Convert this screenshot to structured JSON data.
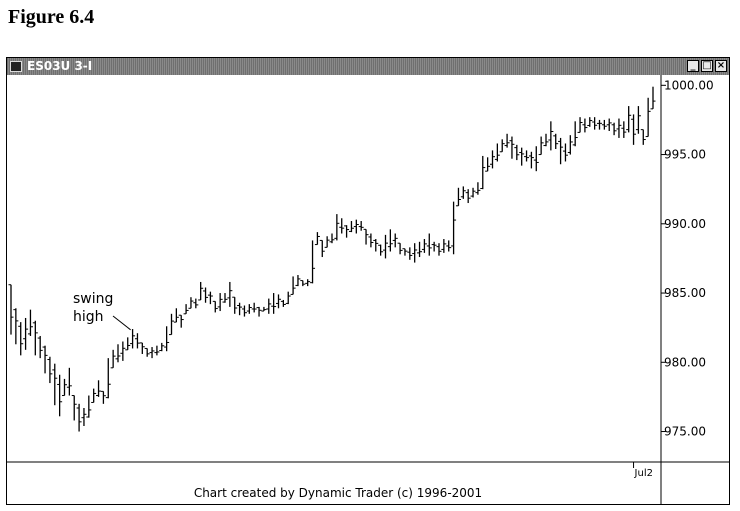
{
  "figure_title": "Figure 6.4",
  "window": {
    "title": "ES03U 3-I",
    "min_symbol": "_",
    "max_symbol": "□",
    "close_symbol": "×"
  },
  "footer": "Chart created by Dynamic Trader (c) 1996-2001",
  "chart_data": {
    "type": "bar",
    "subtype": "ohlc",
    "ylim": [
      972.8,
      1000.6
    ],
    "yticks": [
      975,
      980,
      985,
      990,
      995,
      1000
    ],
    "ytick_labels": [
      "975.00",
      "980.00",
      "985.00",
      "990.00",
      "995.00",
      "1000.00"
    ],
    "xtick_labels": [
      "Jul2"
    ],
    "annotation": {
      "lines": [
        "swing",
        "high"
      ]
    },
    "bars": [
      [
        985.6,
        982.0
      ],
      [
        983.9,
        981.3
      ],
      [
        982.9,
        980.5
      ],
      [
        983.2,
        980.9
      ],
      [
        983.8,
        981.9
      ],
      [
        983.0,
        980.5
      ],
      [
        981.9,
        980.3
      ],
      [
        981.2,
        979.2
      ],
      [
        980.4,
        978.5
      ],
      [
        979.9,
        976.9
      ],
      [
        979.1,
        976.1
      ],
      [
        978.8,
        977.6
      ],
      [
        979.6,
        977.6
      ],
      [
        977.6,
        975.8
      ],
      [
        977.0,
        975.0
      ],
      [
        976.7,
        975.4
      ],
      [
        977.6,
        976.0
      ],
      [
        978.1,
        977.1
      ],
      [
        978.7,
        977.5
      ],
      [
        977.9,
        977.0
      ],
      [
        980.3,
        977.4
      ],
      [
        980.9,
        979.6
      ],
      [
        981.3,
        980.0
      ],
      [
        981.5,
        980.1
      ],
      [
        981.8,
        980.9
      ],
      [
        982.4,
        981.0
      ],
      [
        982.1,
        981.0
      ],
      [
        981.4,
        980.6
      ],
      [
        981.0,
        980.4
      ],
      [
        981.1,
        980.3
      ],
      [
        981.2,
        980.5
      ],
      [
        981.4,
        980.8
      ],
      [
        982.6,
        980.8
      ],
      [
        983.5,
        982.0
      ],
      [
        983.9,
        982.9
      ],
      [
        983.4,
        982.5
      ],
      [
        984.2,
        983.5
      ],
      [
        984.7,
        983.9
      ],
      [
        984.6,
        983.9
      ],
      [
        985.8,
        984.5
      ],
      [
        985.4,
        984.3
      ],
      [
        985.1,
        984.2
      ],
      [
        984.4,
        983.6
      ],
      [
        985.0,
        983.7
      ],
      [
        985.0,
        984.3
      ],
      [
        985.8,
        984.0
      ],
      [
        984.7,
        983.5
      ],
      [
        984.3,
        983.4
      ],
      [
        984.1,
        983.3
      ],
      [
        984.2,
        983.5
      ],
      [
        984.3,
        983.6
      ],
      [
        984.0,
        983.3
      ],
      [
        984.0,
        983.7
      ],
      [
        984.6,
        983.5
      ],
      [
        985.0,
        983.5
      ],
      [
        984.9,
        983.9
      ],
      [
        984.5,
        984.0
      ],
      [
        985.1,
        984.2
      ],
      [
        986.2,
        984.9
      ],
      [
        986.3,
        985.5
      ],
      [
        985.9,
        985.5
      ],
      [
        986.0,
        985.5
      ],
      [
        988.8,
        985.7
      ],
      [
        989.4,
        988.5
      ],
      [
        988.8,
        987.6
      ],
      [
        989.1,
        988.3
      ],
      [
        989.3,
        988.6
      ],
      [
        990.7,
        988.8
      ],
      [
        990.4,
        989.3
      ],
      [
        989.9,
        989.0
      ],
      [
        990.2,
        989.4
      ],
      [
        990.3,
        989.3
      ],
      [
        990.2,
        989.5
      ],
      [
        989.6,
        988.5
      ],
      [
        989.3,
        988.3
      ],
      [
        988.9,
        988.0
      ],
      [
        988.5,
        987.7
      ],
      [
        989.2,
        987.5
      ],
      [
        989.6,
        988.0
      ],
      [
        989.3,
        988.3
      ],
      [
        988.6,
        987.8
      ],
      [
        988.2,
        987.7
      ],
      [
        988.3,
        987.4
      ],
      [
        988.6,
        987.2
      ],
      [
        988.7,
        987.6
      ],
      [
        988.9,
        987.9
      ],
      [
        989.3,
        987.7
      ],
      [
        988.7,
        988.0
      ],
      [
        988.6,
        987.7
      ],
      [
        988.9,
        987.9
      ],
      [
        988.8,
        988.0
      ],
      [
        991.6,
        987.8
      ],
      [
        992.6,
        991.3
      ],
      [
        992.7,
        991.8
      ],
      [
        992.5,
        991.5
      ],
      [
        992.6,
        991.9
      ],
      [
        993.0,
        992.1
      ],
      [
        994.9,
        992.5
      ],
      [
        994.8,
        993.8
      ],
      [
        995.3,
        994.0
      ],
      [
        995.8,
        994.5
      ],
      [
        996.1,
        995.2
      ],
      [
        996.5,
        995.5
      ],
      [
        996.3,
        994.7
      ],
      [
        995.7,
        994.6
      ],
      [
        995.5,
        994.2
      ],
      [
        995.3,
        994.5
      ],
      [
        995.2,
        994.0
      ],
      [
        995.6,
        993.8
      ],
      [
        996.3,
        995.0
      ],
      [
        996.5,
        995.6
      ],
      [
        997.4,
        995.3
      ],
      [
        996.5,
        995.4
      ],
      [
        996.2,
        994.3
      ],
      [
        995.8,
        994.5
      ],
      [
        996.4,
        995.0
      ],
      [
        997.4,
        995.6
      ],
      [
        997.7,
        996.6
      ],
      [
        997.6,
        996.6
      ],
      [
        997.7,
        997.0
      ],
      [
        997.7,
        996.8
      ],
      [
        997.5,
        996.8
      ],
      [
        997.5,
        996.8
      ],
      [
        997.6,
        996.7
      ],
      [
        997.3,
        996.4
      ],
      [
        997.6,
        996.2
      ],
      [
        997.4,
        996.2
      ],
      [
        998.5,
        996.6
      ],
      [
        997.9,
        995.7
      ],
      [
        998.5,
        996.5
      ],
      [
        996.8,
        995.7
      ],
      [
        999.1,
        996.3
      ],
      [
        999.9,
        998.3
      ]
    ]
  }
}
